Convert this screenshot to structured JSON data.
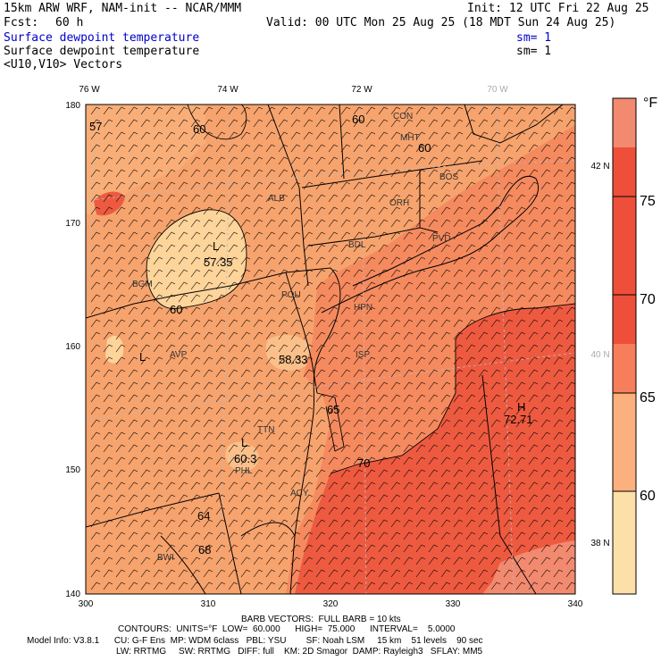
{
  "header": {
    "model": "15km ARW WRF, NAM-init -- NCAR/MMM",
    "init": "Init: 12 UTC Fri 22 Aug 25",
    "fcst_label": "Fcst:",
    "fcst_value": "60 h",
    "valid": "Valid: 00 UTC Mon 25 Aug 25 (18 MDT Sun 24 Aug 25)",
    "field1": "Surface dewpoint temperature",
    "field1_sm": "sm= 1",
    "field2": "Surface dewpoint temperature",
    "field2_sm": "sm= 1",
    "field3": "<U10,V10> Vectors"
  },
  "map": {
    "top_lon_labels": [
      "76 W",
      "74 W",
      "72 W",
      "70 W"
    ],
    "right_lat_labels": [
      "42 N",
      "40 N",
      "38 N"
    ],
    "x_ticks": [
      "300",
      "310",
      "320",
      "330",
      "340"
    ],
    "y_ticks": [
      "180",
      "170",
      "160",
      "150",
      "140"
    ],
    "stations": [
      "ALB",
      "BGM",
      "AVP",
      "POU",
      "HPN",
      "ISP",
      "BDL",
      "ORH",
      "CON",
      "MHT",
      "BOS",
      "PVD",
      "TTN",
      "PHL",
      "ACY",
      "BWI"
    ],
    "contour_labels": [
      "57",
      "60",
      "60",
      "60",
      "57.35",
      "60",
      "58.33",
      "65",
      "60.3",
      "64",
      "72.71",
      "70",
      "68"
    ],
    "lows": [
      "L",
      "L",
      "L"
    ],
    "highs": [
      "H"
    ]
  },
  "colorbar": {
    "unit": "°F",
    "labels": [
      "75",
      "70",
      "65",
      "60"
    ],
    "colors": [
      "#f28a70",
      "#ee4f3a",
      "#f77e5a",
      "#fbb07e",
      "#fde0a8"
    ]
  },
  "colors": {
    "land_fill": "#f7a36d",
    "warm_fill": "#ee5a40",
    "cool_fill": "#fdd49a",
    "mid_fill": "#f58a5e"
  },
  "footer": {
    "barb": "BARB VECTORS:  FULL BARB = 10 kts",
    "contours": "CONTOURS:  UNITS=°F  LOW=  60.000      HIGH=  75.000      INTERVAL=    5.0000",
    "model_info": "Model Info: V3.8.1      CU: G-F Ens  MP: WDM 6class   PBL: YSU        SF: Noah LSM     15 km    51 levels    90 sec",
    "model_info2": "LW: RRTMG     SW: RRTMG   DIFF: full    KM: 2D Smagor  DAMP: Rayleigh3   SFLAY: MM5"
  }
}
